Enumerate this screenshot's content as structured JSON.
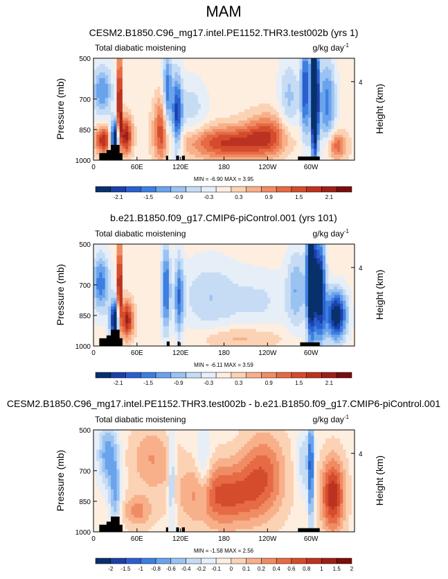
{
  "page_title": "MAM",
  "colorbar_main": {
    "colors": [
      "#08306b",
      "#1c3fa8",
      "#2a5fd0",
      "#3d7fe0",
      "#6aa3ec",
      "#9ac3f2",
      "#c6dcf5",
      "#e6eef8",
      "#fdeee0",
      "#fbd2b4",
      "#f7b08a",
      "#f08c64",
      "#e66a44",
      "#d44c2c",
      "#bb3320",
      "#9c2016",
      "#7a0d0d"
    ],
    "labels": [
      "-2.1",
      "-1.5",
      "-0.9",
      "-0.3",
      "0.3",
      "0.9",
      "1.5",
      "2.1"
    ]
  },
  "colorbar_diff": {
    "colors": [
      "#08306b",
      "#1c3fa8",
      "#2a5fd0",
      "#3d7fe0",
      "#6aa3ec",
      "#9ac3f2",
      "#c6dcf5",
      "#e6eef8",
      "#fdeee0",
      "#fbd2b4",
      "#f7b08a",
      "#f08c64",
      "#e66a44",
      "#d44c2c",
      "#bb3320",
      "#9c2016",
      "#7a0d0d"
    ],
    "labels": [
      "-2",
      "-1.5",
      "-1",
      "-0.8",
      "-0.6",
      "-0.4",
      "-0.2",
      "-0.1",
      "0",
      "0.1",
      "0.2",
      "0.4",
      "0.6",
      "0.8",
      "1",
      "1.5",
      "2"
    ]
  },
  "chart_data": [
    {
      "type": "heatmap",
      "title": "CESM2.B1850.C96_mg17.intel.PE1152.THR3.test002b (yrs 1)",
      "left_label": "Total diabatic moistening",
      "units_label": "g/kg day",
      "units_exp": "-1",
      "ylabel": "Pressure (mb)",
      "right_label": "Height (km)",
      "right_tick": "4",
      "right_tick_pressure": 615,
      "yticks": [
        500,
        700,
        850,
        1000
      ],
      "ylim": [
        500,
        1000
      ],
      "xticks": [
        "0",
        "60E",
        "120E",
        "180",
        "120W",
        "60W"
      ],
      "xtick_values": [
        0,
        60,
        120,
        180,
        240,
        300
      ],
      "xlim": [
        0,
        360
      ],
      "stats": "MIN = -6.90  MAX =  3.95",
      "min": -6.9,
      "max": 3.95,
      "scale": 2.1,
      "cmap": "main",
      "features": [
        {
          "lon": 36,
          "p": 720,
          "wlon": 3,
          "wp": 230,
          "v": 2.4
        },
        {
          "lon": 30,
          "p": 900,
          "wlon": 7,
          "wp": 90,
          "v": -2.6
        },
        {
          "lon": 44,
          "p": 880,
          "wlon": 9,
          "wp": 90,
          "v": 1.8
        },
        {
          "lon": 12,
          "p": 660,
          "wlon": 14,
          "wp": 130,
          "v": -1.1
        },
        {
          "lon": 14,
          "p": 900,
          "wlon": 12,
          "wp": 70,
          "v": 1.6
        },
        {
          "lon": 102,
          "p": 700,
          "wlon": 6,
          "wp": 250,
          "v": -1.4
        },
        {
          "lon": 115,
          "p": 780,
          "wlon": 7,
          "wp": 200,
          "v": -1.6
        },
        {
          "lon": 95,
          "p": 850,
          "wlon": 12,
          "wp": 150,
          "v": 1.3
        },
        {
          "lon": 135,
          "p": 750,
          "wlon": 22,
          "wp": 150,
          "v": -0.5
        },
        {
          "lon": 185,
          "p": 915,
          "wlon": 60,
          "wp": 80,
          "v": 1.4
        },
        {
          "lon": 240,
          "p": 870,
          "wlon": 30,
          "wp": 100,
          "v": 1.0
        },
        {
          "lon": 305,
          "p": 680,
          "wlon": 5,
          "wp": 300,
          "v": -3.5
        },
        {
          "lon": 292,
          "p": 650,
          "wlon": 6,
          "wp": 250,
          "v": -1.6
        },
        {
          "lon": 322,
          "p": 720,
          "wlon": 12,
          "wp": 220,
          "v": -1.2
        },
        {
          "lon": 270,
          "p": 700,
          "wlon": 14,
          "wp": 200,
          "v": -0.7
        },
        {
          "lon": 335,
          "p": 930,
          "wlon": 14,
          "wp": 70,
          "v": 1.1
        }
      ],
      "topography": [
        {
          "lon0": 8,
          "lon1": 40,
          "p": 965
        },
        {
          "lon0": 24,
          "lon1": 36,
          "p": 925
        },
        {
          "lon0": 18,
          "lon1": 28,
          "p": 950
        },
        {
          "lon0": 100,
          "lon1": 103,
          "p": 978
        },
        {
          "lon0": 114,
          "lon1": 118,
          "p": 978
        },
        {
          "lon0": 122,
          "lon1": 126,
          "p": 978
        },
        {
          "lon0": 282,
          "lon1": 312,
          "p": 982
        }
      ]
    },
    {
      "type": "heatmap",
      "title": "b.e21.B1850.f09_g17.CMIP6-piControl.001 (yrs 101)",
      "left_label": "Total diabatic moistening",
      "units_label": "g/kg day",
      "units_exp": "-1",
      "ylabel": "Pressure (mb)",
      "right_label": "Height (km)",
      "right_tick": "4",
      "right_tick_pressure": 615,
      "yticks": [
        500,
        700,
        850,
        1000
      ],
      "ylim": [
        500,
        1000
      ],
      "xticks": [
        "0",
        "60E",
        "120E",
        "180",
        "120W",
        "60W"
      ],
      "xtick_values": [
        0,
        60,
        120,
        180,
        240,
        300
      ],
      "xlim": [
        0,
        360
      ],
      "stats": "MIN = -6.11  MAX =  3.59",
      "min": -6.11,
      "max": 3.59,
      "scale": 2.1,
      "cmap": "main",
      "features": [
        {
          "lon": 36,
          "p": 720,
          "wlon": 3,
          "wp": 230,
          "v": 2.3
        },
        {
          "lon": 30,
          "p": 880,
          "wlon": 7,
          "wp": 100,
          "v": -2.4
        },
        {
          "lon": 46,
          "p": 870,
          "wlon": 9,
          "wp": 90,
          "v": 1.7
        },
        {
          "lon": 10,
          "p": 690,
          "wlon": 12,
          "wp": 140,
          "v": -1.3
        },
        {
          "lon": 100,
          "p": 720,
          "wlon": 6,
          "wp": 220,
          "v": -1.4
        },
        {
          "lon": 118,
          "p": 760,
          "wlon": 6,
          "wp": 200,
          "v": -1.2
        },
        {
          "lon": 160,
          "p": 760,
          "wlon": 40,
          "wp": 180,
          "v": -0.6
        },
        {
          "lon": 230,
          "p": 780,
          "wlon": 40,
          "wp": 150,
          "v": -0.4
        },
        {
          "lon": 300,
          "p": 650,
          "wlon": 6,
          "wp": 320,
          "v": -2.8
        },
        {
          "lon": 312,
          "p": 720,
          "wlon": 8,
          "wp": 260,
          "v": -2.2
        },
        {
          "lon": 335,
          "p": 850,
          "wlon": 14,
          "wp": 120,
          "v": -2.2
        },
        {
          "lon": 280,
          "p": 720,
          "wlon": 14,
          "wp": 200,
          "v": -0.8
        },
        {
          "lon": 200,
          "p": 960,
          "wlon": 60,
          "wp": 60,
          "v": 0.5
        }
      ],
      "topography": [
        {
          "lon0": 8,
          "lon1": 40,
          "p": 962
        },
        {
          "lon0": 24,
          "lon1": 36,
          "p": 920
        },
        {
          "lon0": 18,
          "lon1": 28,
          "p": 948
        },
        {
          "lon0": 101,
          "lon1": 105,
          "p": 978
        },
        {
          "lon0": 116,
          "lon1": 119,
          "p": 978
        },
        {
          "lon0": 285,
          "lon1": 312,
          "p": 982
        }
      ]
    },
    {
      "type": "heatmap",
      "title": "CESM2.B1850.C96_mg17.intel.PE1152.THR3.test002b - b.e21.B1850.f09_g17.CMIP6-piControl.001",
      "left_label": "Total diabatic moistening",
      "units_label": "g/kg day",
      "units_exp": "-1",
      "ylabel": "Pressure (mb)",
      "right_label": "Height (km)",
      "right_tick": "4",
      "right_tick_pressure": 615,
      "yticks": [
        500,
        700,
        850,
        1000
      ],
      "ylim": [
        500,
        1000
      ],
      "xticks": [
        "0",
        "60E",
        "120E",
        "180",
        "120W",
        "60W"
      ],
      "xtick_values": [
        0,
        60,
        120,
        180,
        240,
        300
      ],
      "xlim": [
        0,
        360
      ],
      "stats": "MIN = -1.58  MAX =  2.56",
      "min": -1.58,
      "max": 2.56,
      "scale": 1.2,
      "cmap": "diff",
      "features": [
        {
          "lon": 180,
          "p": 820,
          "wlon": 55,
          "wp": 160,
          "v": 0.7
        },
        {
          "lon": 235,
          "p": 700,
          "wlon": 30,
          "wp": 200,
          "v": 0.5
        },
        {
          "lon": 330,
          "p": 820,
          "wlon": 16,
          "wp": 180,
          "v": 0.9
        },
        {
          "lon": 20,
          "p": 620,
          "wlon": 14,
          "wp": 150,
          "v": -0.6
        },
        {
          "lon": 30,
          "p": 820,
          "wlon": 8,
          "wp": 160,
          "v": -0.5
        },
        {
          "lon": 108,
          "p": 750,
          "wlon": 5,
          "wp": 250,
          "v": -0.5
        },
        {
          "lon": 152,
          "p": 700,
          "wlon": 10,
          "wp": 200,
          "v": -0.35
        },
        {
          "lon": 80,
          "p": 640,
          "wlon": 30,
          "wp": 160,
          "v": 0.35
        },
        {
          "lon": 300,
          "p": 700,
          "wlon": 4,
          "wp": 300,
          "v": -0.8
        },
        {
          "lon": 290,
          "p": 660,
          "wlon": 10,
          "wp": 160,
          "v": -0.35
        },
        {
          "lon": 60,
          "p": 900,
          "wlon": 20,
          "wp": 80,
          "v": 0.4
        }
      ],
      "topography": [
        {
          "lon0": 8,
          "lon1": 40,
          "p": 965
        },
        {
          "lon0": 24,
          "lon1": 36,
          "p": 925
        },
        {
          "lon0": 18,
          "lon1": 28,
          "p": 950
        },
        {
          "lon0": 100,
          "lon1": 103,
          "p": 978
        },
        {
          "lon0": 114,
          "lon1": 118,
          "p": 978
        },
        {
          "lon0": 122,
          "lon1": 126,
          "p": 978
        },
        {
          "lon0": 282,
          "lon1": 312,
          "p": 982
        }
      ]
    }
  ]
}
